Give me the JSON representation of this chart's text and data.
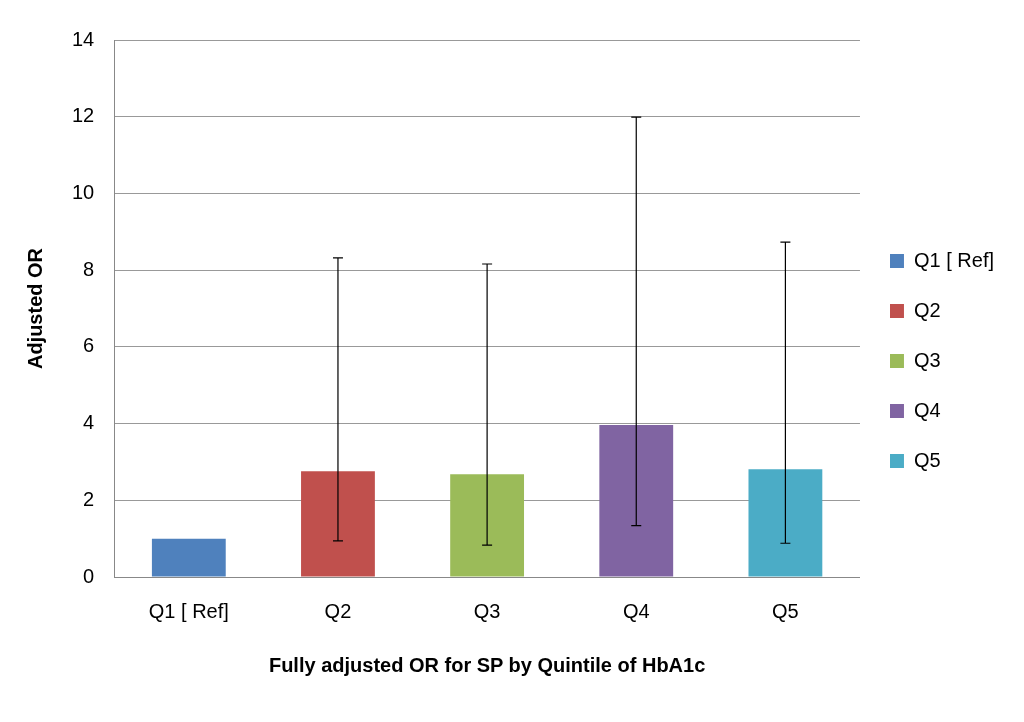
{
  "chart_data": {
    "type": "bar",
    "xlabel": "Fully adjusted OR for SP by Quintile of HbA1c",
    "ylabel": "Adjusted OR",
    "categories": [
      "Q1 [ Ref]",
      "Q2",
      "Q3",
      "Q4",
      "Q5"
    ],
    "series": [
      {
        "name": "Q1 [ Ref]",
        "color": "#4f81bd",
        "values": [
          1.0,
          null,
          null,
          null,
          null
        ],
        "errors": [
          null,
          null,
          null,
          null,
          null
        ]
      },
      {
        "name": "Q2",
        "color": "#c0504d",
        "values": [
          null,
          2.76,
          null,
          null,
          null
        ],
        "errors": [
          null,
          [
            0.94,
            8.32
          ],
          null,
          null,
          null
        ]
      },
      {
        "name": "Q3",
        "color": "#9bbb59",
        "values": [
          null,
          null,
          2.68,
          null,
          null
        ],
        "errors": [
          null,
          null,
          [
            0.83,
            8.16
          ],
          null,
          null
        ]
      },
      {
        "name": "Q4",
        "color": "#8064a2",
        "values": [
          null,
          null,
          null,
          3.96,
          null
        ],
        "errors": [
          null,
          null,
          null,
          [
            1.34,
            11.99
          ],
          null
        ]
      },
      {
        "name": "Q5",
        "color": "#4bacc6",
        "values": [
          null,
          null,
          null,
          null,
          2.81
        ],
        "errors": [
          null,
          null,
          null,
          null,
          [
            0.88,
            8.73
          ]
        ]
      }
    ],
    "ylim": [
      0,
      14
    ],
    "yticks": [
      0,
      2,
      4,
      6,
      8,
      10,
      12,
      14
    ],
    "grid": "y",
    "legend": "right"
  }
}
